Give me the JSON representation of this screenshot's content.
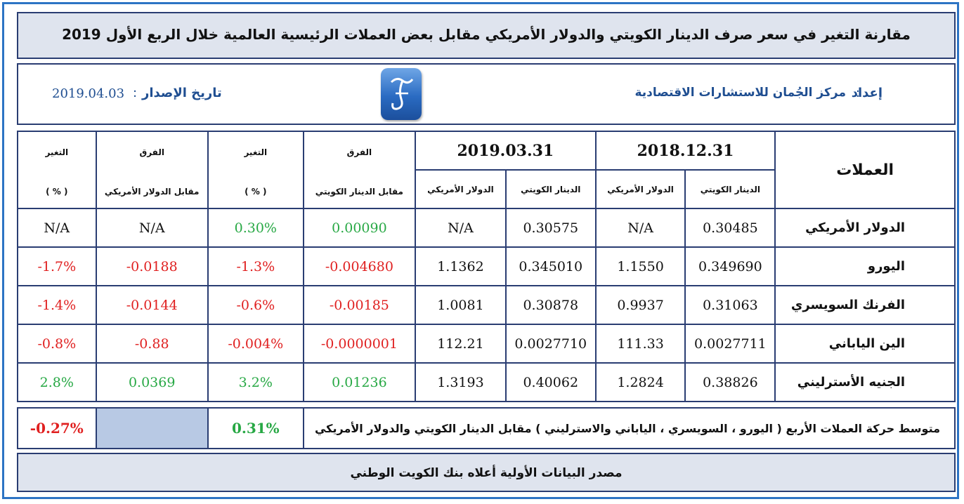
{
  "title": "مقارنة التغير في سعر صرف الدينار الكويتي والدولار الأمريكي مقابل بعض العملات الرئيسية العالمية خلال الربع الأول 2019",
  "info": {
    "prepared_label": "إعداد",
    "prepared_value": "مركز الجُمان للاستشارات الاقتصادية",
    "date_label": "تاريخ الإصدار",
    "date_value": "2019.04.03",
    "colon": ":"
  },
  "icons": {
    "logo": "jumaan-logo-icon"
  },
  "table": {
    "currencies_header": "العملات",
    "date1": "2018.12.31",
    "date2": "2019.03.31",
    "kwd_header": "الدينار الكويتي",
    "usd_header": "الدولار الأمريكي",
    "diff_header": "الفرق",
    "diff_kwd_sub": "مقابل الدينار الكويتي",
    "diff_usd_sub": "مقابل الدولار الأمريكي",
    "change_header": "التغير",
    "pct_sub": "( % )",
    "rows": [
      {
        "name": "الدولار الأمريكي",
        "kwd1": "0.30485",
        "usd1": "N/A",
        "kwd2": "0.30575",
        "usd2": "N/A",
        "diff_kwd": "0.00090",
        "chg_kwd": "0.30%",
        "diff_usd": "N/A",
        "chg_usd": "N/A"
      },
      {
        "name": "اليورو",
        "kwd1": "0.349690",
        "usd1": "1.1550",
        "kwd2": "0.345010",
        "usd2": "1.1362",
        "diff_kwd": "-0.004680",
        "chg_kwd": "-1.3%",
        "diff_usd": "-0.0188",
        "chg_usd": "-1.7%"
      },
      {
        "name": "الفرنك السويسري",
        "kwd1": "0.31063",
        "usd1": "0.9937",
        "kwd2": "0.30878",
        "usd2": "1.0081",
        "diff_kwd": "-0.00185",
        "chg_kwd": "-0.6%",
        "diff_usd": "-0.0144",
        "chg_usd": "-1.4%"
      },
      {
        "name": "الين الياباني",
        "kwd1": "0.0027711",
        "usd1": "111.33",
        "kwd2": "0.0027710",
        "usd2": "112.21",
        "diff_kwd": "-0.0000001",
        "chg_kwd": "-0.004%",
        "diff_usd": "-0.88",
        "chg_usd": "-0.8%"
      },
      {
        "name": "الجنيه الأسترليني",
        "kwd1": "0.38826",
        "usd1": "1.2824",
        "kwd2": "0.40062",
        "usd2": "1.3193",
        "diff_kwd": "0.01236",
        "chg_kwd": "3.2%",
        "diff_usd": "0.0369",
        "chg_usd": "2.8%"
      }
    ],
    "avg_label": "متوسط حركة العملات الأربع ( اليورو ، السويسري ، الياباني والاسترليني ) مقابل الدينار الكويتي والدولار الأمريكي",
    "avg_kwd": "0.31%",
    "avg_usd": "-0.27%"
  },
  "source": "مصدر البيانات الأولية أعلاه بنك الكويت الوطني",
  "colors": {
    "positive": "#27a844",
    "negative": "#e02020",
    "header_bg": "#dfe4ee",
    "border": "#2a3d72",
    "accent": "#1f4e91"
  }
}
